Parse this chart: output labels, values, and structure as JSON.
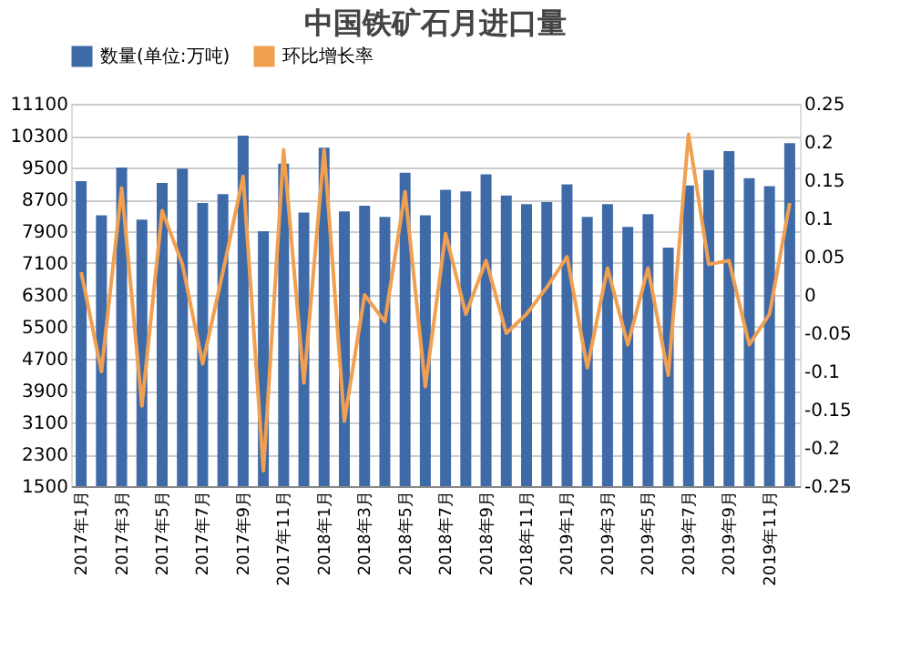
{
  "chart_data": {
    "type": "bar",
    "title": "中国铁矿石月进口量",
    "categories": [
      "2017年1月",
      null,
      "2017年3月",
      null,
      "2017年5月",
      null,
      "2017年7月",
      null,
      "2017年9月",
      null,
      "2017年11月",
      null,
      "2018年1月",
      null,
      "2018年3月",
      null,
      "2018年5月",
      null,
      "2018年7月",
      null,
      "2018年9月",
      null,
      "2018年11月",
      null,
      "2019年1月",
      null,
      "2019年3月",
      null,
      "2019年5月",
      null,
      "2019年7月",
      null,
      "2019年9月",
      null,
      "2019年11月",
      null
    ],
    "series": [
      {
        "name": "数量(单位:万吨)",
        "color": "#3f6aa8",
        "values": [
          9160,
          8300,
          9500,
          8190,
          9110,
          9470,
          8610,
          8830,
          10300,
          7900,
          9600,
          8370,
          10000,
          8400,
          8540,
          8260,
          9370,
          8300,
          8940,
          8900,
          9330,
          8800,
          8580,
          8630,
          9080,
          8260,
          8580,
          8010,
          8330,
          7490,
          9050,
          9440,
          9910,
          9230,
          9030,
          10110
        ]
      },
      {
        "name": "环比增长率",
        "type": "line",
        "axis": "y2",
        "color": "#f0a050",
        "values": [
          0.03,
          -0.1,
          0.14,
          -0.145,
          0.11,
          0.04,
          -0.09,
          0.03,
          0.155,
          -0.23,
          0.19,
          -0.115,
          0.19,
          -0.165,
          0.0,
          -0.035,
          0.135,
          -0.12,
          0.08,
          -0.025,
          0.045,
          -0.05,
          -0.025,
          0.01,
          0.05,
          -0.095,
          0.035,
          -0.065,
          0.035,
          -0.105,
          0.21,
          0.04,
          0.045,
          -0.065,
          -0.025,
          0.12
        ]
      }
    ],
    "ylim": [
      1500,
      11100
    ],
    "yticks": [
      1500,
      2300,
      3100,
      3900,
      4700,
      5500,
      6300,
      7100,
      7900,
      8700,
      9500,
      10300,
      11100
    ],
    "y2lim": [
      -0.25,
      0.25
    ],
    "y2ticks": [
      -0.25,
      -0.2,
      -0.15,
      -0.1,
      -0.05,
      0,
      0.05,
      0.1,
      0.15,
      0.2,
      0.25
    ],
    "grid": "y",
    "legend": "top"
  }
}
